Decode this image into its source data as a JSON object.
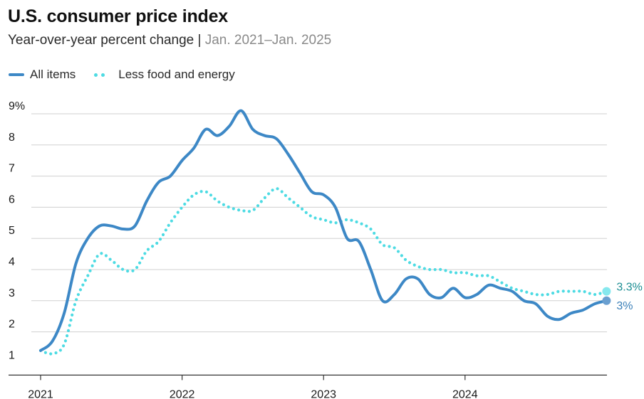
{
  "title": "U.S. consumer price index",
  "subtitle": {
    "main": "Year-over-year percent change",
    "separator": "|",
    "range": "Jan. 2021–Jan. 2025"
  },
  "colors": {
    "all_items": "#3d88c6",
    "core": "#4ddbe3",
    "label_all": "#3a7fb8",
    "label_core": "#1c8e93",
    "grid": "#d0d0d0",
    "axis": "#333333"
  },
  "chart_data": {
    "type": "line",
    "title": "U.S. consumer price index",
    "subtitle": "Year-over-year percent change | Jan. 2021–Jan. 2025",
    "ylabel": "",
    "xlabel": "",
    "ylim": [
      1,
      9
    ],
    "x_ticks": [
      {
        "label": "2021",
        "t": 0
      },
      {
        "label": "2022",
        "t": 12
      },
      {
        "label": "2023",
        "t": 24
      },
      {
        "label": "2024",
        "t": 36
      }
    ],
    "y_ticks": [
      {
        "value": 9,
        "label": "9%"
      },
      {
        "value": 8,
        "label": "8"
      },
      {
        "value": 7,
        "label": "7"
      },
      {
        "value": 6,
        "label": "6"
      },
      {
        "value": 5,
        "label": "5"
      },
      {
        "value": 4,
        "label": "4"
      },
      {
        "value": 3,
        "label": "3"
      },
      {
        "value": 2,
        "label": "2"
      },
      {
        "value": 1,
        "label": "1"
      }
    ],
    "grid": true,
    "legend_position": "top-left",
    "x": [
      "2021-01",
      "2021-02",
      "2021-03",
      "2021-04",
      "2021-05",
      "2021-06",
      "2021-07",
      "2021-08",
      "2021-09",
      "2021-10",
      "2021-11",
      "2021-12",
      "2022-01",
      "2022-02",
      "2022-03",
      "2022-04",
      "2022-05",
      "2022-06",
      "2022-07",
      "2022-08",
      "2022-09",
      "2022-10",
      "2022-11",
      "2022-12",
      "2023-01",
      "2023-02",
      "2023-03",
      "2023-04",
      "2023-05",
      "2023-06",
      "2023-07",
      "2023-08",
      "2023-09",
      "2023-10",
      "2023-11",
      "2023-12",
      "2024-01",
      "2024-02",
      "2024-03",
      "2024-04",
      "2024-05",
      "2024-06",
      "2024-07",
      "2024-08",
      "2024-09",
      "2024-10",
      "2024-11",
      "2024-12",
      "2025-01"
    ],
    "series": [
      {
        "name": "All items",
        "style": "solid",
        "values": [
          1.4,
          1.7,
          2.6,
          4.2,
          5.0,
          5.4,
          5.4,
          5.3,
          5.4,
          6.2,
          6.8,
          7.0,
          7.5,
          7.9,
          8.5,
          8.3,
          8.6,
          9.1,
          8.5,
          8.3,
          8.2,
          7.7,
          7.1,
          6.5,
          6.4,
          6.0,
          5.0,
          4.9,
          4.0,
          3.0,
          3.2,
          3.7,
          3.7,
          3.2,
          3.1,
          3.4,
          3.1,
          3.2,
          3.5,
          3.4,
          3.3,
          3.0,
          2.9,
          2.5,
          2.4,
          2.6,
          2.7,
          2.9,
          3.0
        ]
      },
      {
        "name": "Less food and energy",
        "style": "dotted",
        "values": [
          1.4,
          1.3,
          1.6,
          3.0,
          3.8,
          4.5,
          4.3,
          4.0,
          4.0,
          4.6,
          4.9,
          5.5,
          6.0,
          6.4,
          6.5,
          6.2,
          6.0,
          5.9,
          5.9,
          6.3,
          6.6,
          6.3,
          6.0,
          5.7,
          5.6,
          5.5,
          5.6,
          5.5,
          5.3,
          4.8,
          4.7,
          4.3,
          4.1,
          4.0,
          4.0,
          3.9,
          3.9,
          3.8,
          3.8,
          3.6,
          3.4,
          3.3,
          3.2,
          3.2,
          3.3,
          3.3,
          3.3,
          3.2,
          3.3
        ]
      }
    ],
    "end_labels": [
      {
        "series": "Less food and energy",
        "text": "3.3%",
        "value": 3.3
      },
      {
        "series": "All items",
        "text": "3%",
        "value": 3.0
      }
    ]
  }
}
